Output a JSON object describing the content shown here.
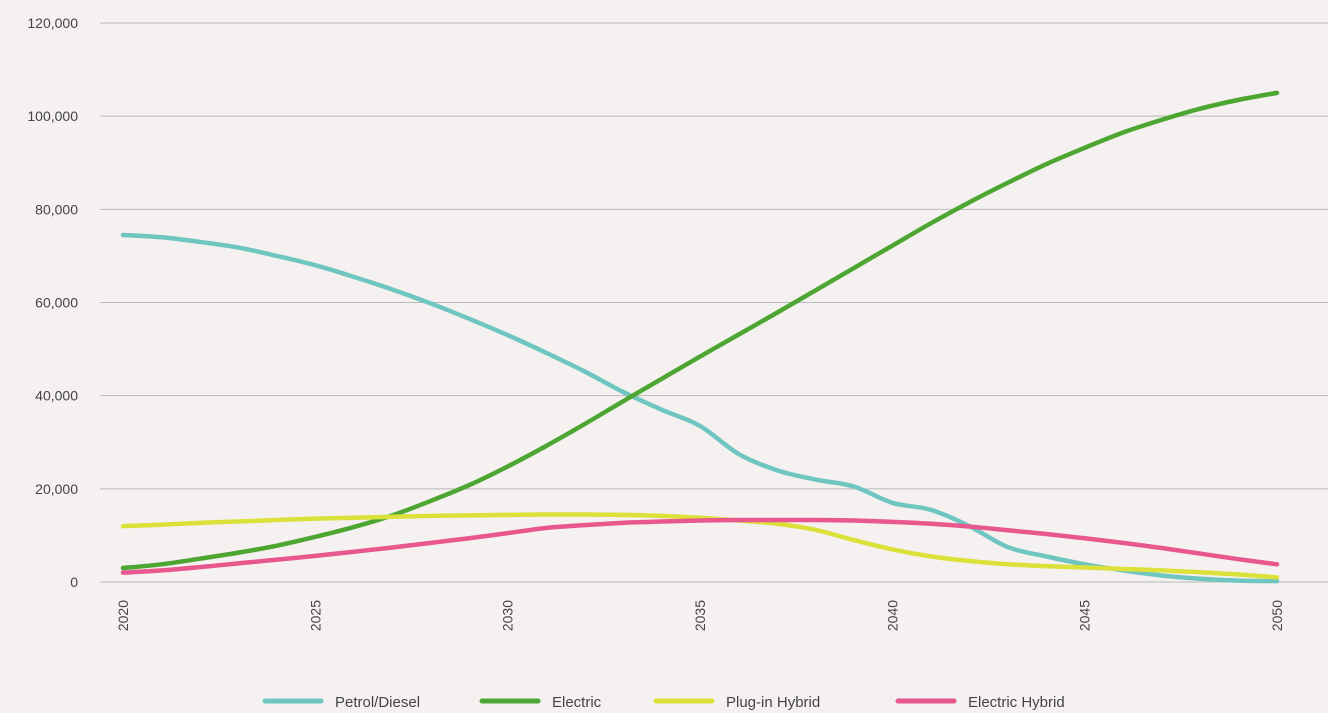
{
  "chart_data": {
    "type": "line",
    "title": "",
    "xlabel": "",
    "ylabel": "",
    "x": [
      2020,
      2021,
      2022,
      2023,
      2024,
      2025,
      2026,
      2027,
      2028,
      2029,
      2030,
      2031,
      2032,
      2033,
      2034,
      2035,
      2036,
      2037,
      2038,
      2039,
      2040,
      2041,
      2042,
      2043,
      2044,
      2045,
      2046,
      2047,
      2048,
      2049,
      2050
    ],
    "x_ticks": [
      "2020",
      "2025",
      "2030",
      "2035",
      "2040",
      "2045",
      "2050"
    ],
    "ylim": [
      0,
      120000
    ],
    "y_ticks": [
      0,
      20000,
      40000,
      60000,
      80000,
      100000,
      120000
    ],
    "y_tick_labels": [
      "0",
      "20,000",
      "40,000",
      "60,000",
      "80,000",
      "100,000",
      "120,000"
    ],
    "grid": "horizontal",
    "legend_position": "bottom",
    "series": [
      {
        "name": "Petrol/Diesel",
        "color": "#6fc6c0",
        "values": [
          74500,
          74000,
          73000,
          71800,
          70000,
          68000,
          65500,
          62800,
          59800,
          56500,
          53000,
          49200,
          45200,
          40800,
          37000,
          33500,
          27500,
          24000,
          22000,
          20500,
          17000,
          15500,
          12000,
          7500,
          5500,
          3800,
          2500,
          1400,
          700,
          300,
          200
        ]
      },
      {
        "name": "Electric",
        "color": "#4da632",
        "values": [
          3000,
          3800,
          5000,
          6300,
          7800,
          9700,
          11800,
          14300,
          17400,
          20800,
          24800,
          29200,
          33900,
          38800,
          43600,
          48400,
          53100,
          57800,
          62600,
          67400,
          72200,
          77000,
          81500,
          85700,
          89700,
          93200,
          96500,
          99200,
          101600,
          103500,
          105000
        ]
      },
      {
        "name": "Plug-in Hybrid",
        "color": "#dce13a",
        "values": [
          12000,
          12300,
          12700,
          13000,
          13300,
          13600,
          13800,
          14000,
          14200,
          14300,
          14400,
          14500,
          14500,
          14400,
          14200,
          13800,
          13200,
          12500,
          11200,
          9000,
          7000,
          5500,
          4500,
          3800,
          3400,
          3100,
          2800,
          2500,
          2100,
          1600,
          1000
        ]
      },
      {
        "name": "Electric Hybrid",
        "color": "#e8578d",
        "values": [
          2000,
          2500,
          3200,
          4000,
          4800,
          5600,
          6500,
          7400,
          8400,
          9400,
          10500,
          11600,
          12200,
          12700,
          13000,
          13200,
          13300,
          13300,
          13300,
          13200,
          12900,
          12500,
          11900,
          11100,
          10300,
          9400,
          8400,
          7300,
          6100,
          4900,
          3800
        ]
      }
    ]
  }
}
